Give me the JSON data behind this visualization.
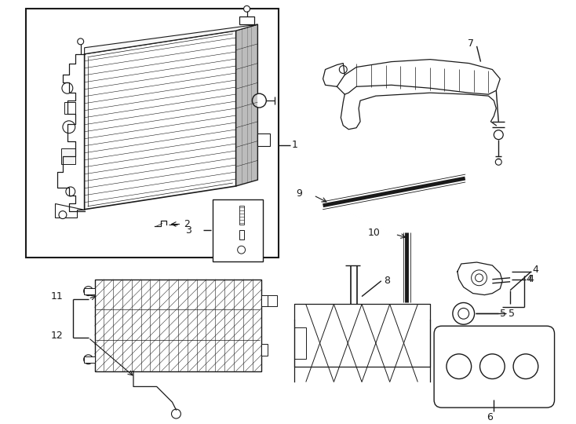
{
  "bg_color": "#ffffff",
  "line_color": "#1a1a1a",
  "text_color": "#1a1a1a",
  "fig_width": 7.34,
  "fig_height": 5.4,
  "dpi": 100
}
